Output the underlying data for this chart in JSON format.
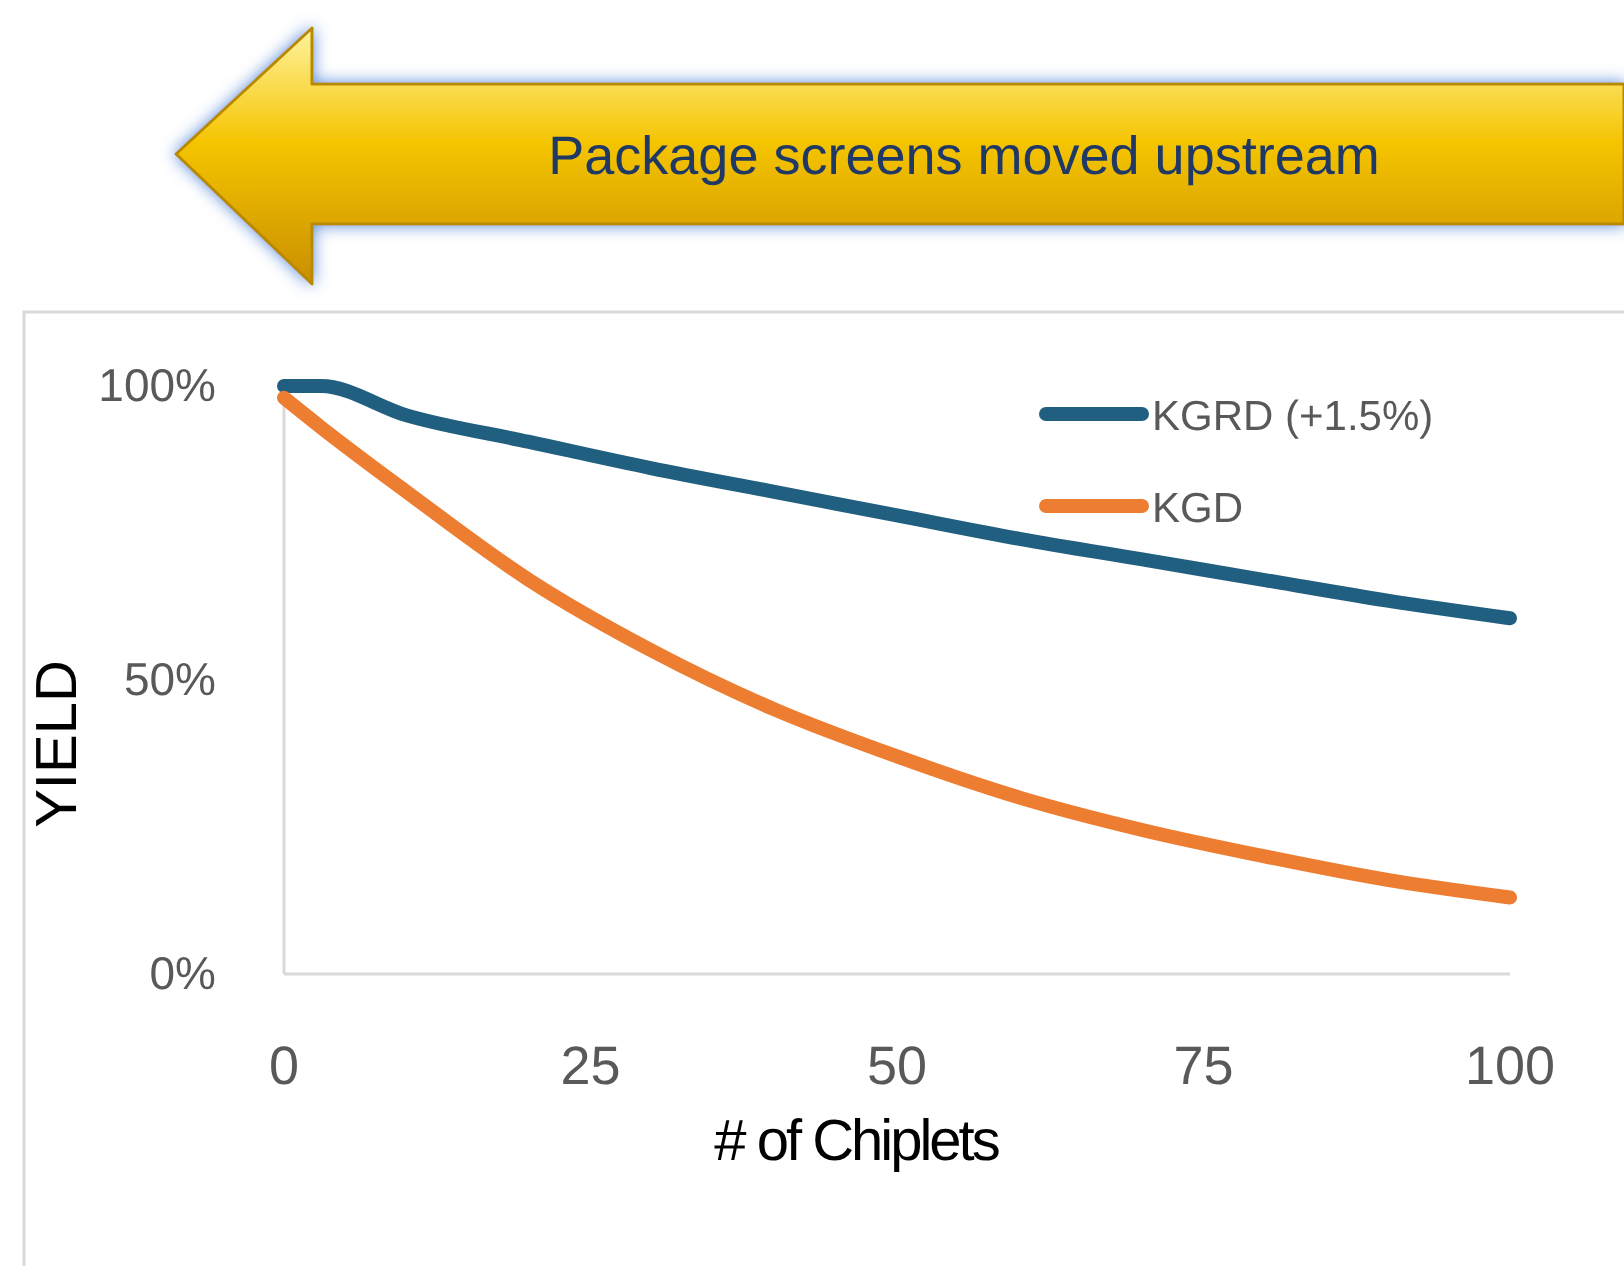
{
  "chart_data": {
    "type": "line",
    "annotations": [
      "Package screens moved upstream"
    ],
    "xlabel": "# of Chiplets",
    "ylabel": "YIELD",
    "x": [
      0,
      3,
      10,
      20,
      30,
      40,
      50,
      60,
      70,
      80,
      90,
      100
    ],
    "series": [
      {
        "name": "KGRD (+1.5%)",
        "color": "#215f80",
        "values": [
          100,
          100,
          95,
          90.5,
          86,
          82,
          78,
          74,
          70.5,
          67,
          63.5,
          60.5
        ]
      },
      {
        "name": "KGD",
        "color": "#ed7d31",
        "values": [
          98,
          93,
          82,
          67,
          55,
          45,
          37,
          30,
          24.5,
          20,
          16,
          13
        ]
      }
    ],
    "xlim": [
      0,
      100
    ],
    "ylim": [
      0,
      100
    ],
    "xticks": [
      0,
      25,
      50,
      75,
      100
    ],
    "yticks": [
      {
        "value": 0,
        "label": "0%"
      },
      {
        "value": 50,
        "label": "50%"
      },
      {
        "value": 100,
        "label": "100%"
      }
    ],
    "grid": false,
    "legend": "top right",
    "marker": "none",
    "line_style": "solid"
  }
}
